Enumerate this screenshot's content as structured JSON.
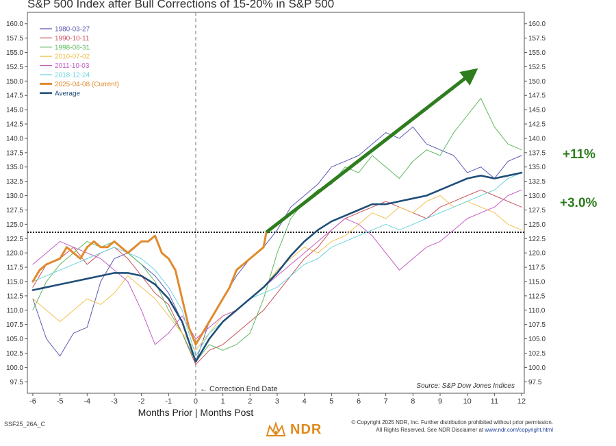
{
  "title": "S&P 500 Index after Bull Corrections of 15-20% in S&P 500",
  "callouts": {
    "upper": "+11%",
    "lower": "+3.0%"
  },
  "footer": {
    "code": "SSF25_26A_C",
    "copyright_line1": "© Copyright 2025 NDR, Inc. Further distribution prohibited without prior permission.",
    "copyright_line2": "All Rights Reserved. See NDR Disclaimer at",
    "copyright_link": "www.ndr.com/copyright.html",
    "logo_text": "NDR"
  },
  "colors": {
    "arrow": "#2e7d1e",
    "callout": "#2e7d1e",
    "logo": "#e08a1e"
  },
  "chart_data": {
    "type": "line",
    "xlabel": "Months Prior | Months Post",
    "source": "Source:  S&P Dow Jones Indices",
    "annotation": "Correction End Date",
    "xlim": [
      -6.2,
      12.1
    ],
    "ylim": [
      95.5,
      162
    ],
    "x_ticks": [
      -6,
      -5,
      -4,
      -3,
      -2,
      -1,
      0,
      1,
      2,
      3,
      4,
      5,
      6,
      7,
      8,
      9,
      10,
      11,
      12
    ],
    "y_ticks": [
      "160.0",
      "157.5",
      "155.0",
      "152.5",
      "150.0",
      "147.5",
      "145.0",
      "142.5",
      "140.0",
      "137.5",
      "135.0",
      "132.5",
      "130.0",
      "127.5",
      "125.0",
      "122.5",
      "120.0",
      "117.5",
      "115.0",
      "112.5",
      "110.0",
      "107.5",
      "105.0",
      "102.5",
      "100.0",
      "97.5"
    ],
    "reference_line": 123.6,
    "legend_position": "top-left",
    "series": [
      {
        "name": "1980-03-27",
        "color": "#5a5ab4",
        "width": 1,
        "points": [
          [
            -6,
            112
          ],
          [
            -5.5,
            105
          ],
          [
            -5,
            102
          ],
          [
            -4.5,
            106
          ],
          [
            -4,
            107
          ],
          [
            -3.5,
            115
          ],
          [
            -3,
            119
          ],
          [
            -2.5,
            120
          ],
          [
            -2,
            118
          ],
          [
            -1.5,
            116
          ],
          [
            -1,
            113
          ],
          [
            -0.5,
            108
          ],
          [
            0,
            101
          ],
          [
            0.5,
            108
          ],
          [
            1,
            112
          ],
          [
            1.5,
            116
          ],
          [
            2,
            119
          ],
          [
            2.5,
            121
          ],
          [
            3,
            124
          ],
          [
            3.5,
            128
          ],
          [
            4,
            130
          ],
          [
            4.5,
            132
          ],
          [
            5,
            135
          ],
          [
            5.5,
            136
          ],
          [
            6,
            137
          ],
          [
            6.5,
            139
          ],
          [
            7,
            141
          ],
          [
            7.5,
            140
          ],
          [
            8,
            142
          ],
          [
            8.5,
            139
          ],
          [
            9,
            138
          ],
          [
            9.5,
            137
          ],
          [
            10,
            134
          ],
          [
            10.5,
            135
          ],
          [
            11,
            133
          ],
          [
            11.5,
            136
          ],
          [
            12,
            137
          ]
        ]
      },
      {
        "name": "1990-10-11",
        "color": "#c8505a",
        "width": 1,
        "points": [
          [
            -6,
            114
          ],
          [
            -5.5,
            118
          ],
          [
            -5,
            119
          ],
          [
            -4.5,
            121
          ],
          [
            -4,
            118
          ],
          [
            -3.5,
            120
          ],
          [
            -3,
            121
          ],
          [
            -2.5,
            119
          ],
          [
            -2,
            116
          ],
          [
            -1.5,
            113
          ],
          [
            -1,
            111
          ],
          [
            -0.5,
            106
          ],
          [
            0,
            100.5
          ],
          [
            0.5,
            103
          ],
          [
            1,
            104
          ],
          [
            1.5,
            106
          ],
          [
            2,
            108
          ],
          [
            2.5,
            110
          ],
          [
            3,
            113
          ],
          [
            3.5,
            116
          ],
          [
            4,
            119
          ],
          [
            4.5,
            121
          ],
          [
            5,
            124
          ],
          [
            5.5,
            126
          ],
          [
            6,
            127
          ],
          [
            6.5,
            128
          ],
          [
            7,
            129
          ],
          [
            7.5,
            128
          ],
          [
            8,
            127
          ],
          [
            8.5,
            126
          ],
          [
            9,
            128
          ],
          [
            9.5,
            129
          ],
          [
            10,
            130
          ],
          [
            10.5,
            131
          ],
          [
            11,
            130
          ],
          [
            11.5,
            129
          ],
          [
            12,
            128
          ]
        ]
      },
      {
        "name": "1998-08-31",
        "color": "#5cb85c",
        "width": 1,
        "points": [
          [
            -6,
            110
          ],
          [
            -5.5,
            115
          ],
          [
            -5,
            118
          ],
          [
            -4.5,
            120
          ],
          [
            -4,
            122
          ],
          [
            -3.5,
            121
          ],
          [
            -3,
            122
          ],
          [
            -2.5,
            120
          ],
          [
            -2,
            118
          ],
          [
            -1.5,
            115
          ],
          [
            -1,
            110
          ],
          [
            -0.5,
            106
          ],
          [
            0,
            101
          ],
          [
            0.5,
            104
          ],
          [
            1,
            103
          ],
          [
            1.5,
            104
          ],
          [
            2,
            106
          ],
          [
            2.5,
            112
          ],
          [
            3,
            120
          ],
          [
            3.5,
            126
          ],
          [
            4,
            129
          ],
          [
            4.5,
            131
          ],
          [
            5,
            132
          ],
          [
            5.5,
            135
          ],
          [
            6,
            134
          ],
          [
            6.5,
            137
          ],
          [
            7,
            135
          ],
          [
            7.5,
            133
          ],
          [
            8,
            136
          ],
          [
            8.5,
            138
          ],
          [
            9,
            137
          ],
          [
            9.5,
            141
          ],
          [
            10,
            144
          ],
          [
            10.5,
            147
          ],
          [
            11,
            142
          ],
          [
            11.5,
            139
          ],
          [
            12,
            138
          ]
        ]
      },
      {
        "name": "2010-07-02",
        "color": "#f2c14e",
        "width": 1,
        "points": [
          [
            -6,
            112
          ],
          [
            -5.5,
            110
          ],
          [
            -5,
            108
          ],
          [
            -4.5,
            110
          ],
          [
            -4,
            112
          ],
          [
            -3.5,
            111
          ],
          [
            -3,
            113
          ],
          [
            -2.5,
            116
          ],
          [
            -2,
            114
          ],
          [
            -1.5,
            112
          ],
          [
            -1,
            109
          ],
          [
            -0.5,
            106
          ],
          [
            0,
            103
          ],
          [
            0.5,
            106
          ],
          [
            1,
            109
          ],
          [
            1.5,
            110
          ],
          [
            2,
            112
          ],
          [
            2.5,
            114
          ],
          [
            3,
            117
          ],
          [
            3.5,
            119
          ],
          [
            4,
            121
          ],
          [
            4.5,
            120
          ],
          [
            5,
            122
          ],
          [
            5.5,
            123
          ],
          [
            6,
            125
          ],
          [
            6.5,
            127
          ],
          [
            7,
            126
          ],
          [
            7.5,
            128
          ],
          [
            8,
            127
          ],
          [
            8.5,
            129
          ],
          [
            9,
            130
          ],
          [
            9.5,
            128
          ],
          [
            10,
            129
          ],
          [
            10.5,
            128
          ],
          [
            11,
            127
          ],
          [
            11.5,
            125
          ],
          [
            12,
            124
          ]
        ]
      },
      {
        "name": "2011-10-03",
        "color": "#c45cc4",
        "width": 1,
        "points": [
          [
            -6,
            118
          ],
          [
            -5.5,
            120
          ],
          [
            -5,
            122
          ],
          [
            -4.5,
            121
          ],
          [
            -4,
            120
          ],
          [
            -3.5,
            119
          ],
          [
            -3,
            117
          ],
          [
            -2.5,
            115
          ],
          [
            -2,
            110
          ],
          [
            -1.5,
            104
          ],
          [
            -1,
            106
          ],
          [
            -0.5,
            109
          ],
          [
            0,
            105
          ],
          [
            0.5,
            107
          ],
          [
            1,
            109
          ],
          [
            1.5,
            110
          ],
          [
            2,
            112
          ],
          [
            2.5,
            114
          ],
          [
            3,
            116
          ],
          [
            3.5,
            118
          ],
          [
            4,
            120
          ],
          [
            4.5,
            122
          ],
          [
            5,
            124
          ],
          [
            5.5,
            126
          ],
          [
            6,
            125
          ],
          [
            6.5,
            123
          ],
          [
            7,
            120
          ],
          [
            7.5,
            117
          ],
          [
            8,
            119
          ],
          [
            8.5,
            121
          ],
          [
            9,
            122
          ],
          [
            9.5,
            124
          ],
          [
            10,
            126
          ],
          [
            10.5,
            127
          ],
          [
            11,
            128
          ],
          [
            11.5,
            130
          ],
          [
            12,
            131
          ]
        ]
      },
      {
        "name": "2018-12-24",
        "color": "#6ad4de",
        "width": 1,
        "points": [
          [
            -6,
            115
          ],
          [
            -5.5,
            116
          ],
          [
            -5,
            117
          ],
          [
            -4.5,
            118
          ],
          [
            -4,
            119
          ],
          [
            -3.5,
            120
          ],
          [
            -3,
            121
          ],
          [
            -2.5,
            120
          ],
          [
            -2,
            119
          ],
          [
            -1.5,
            117
          ],
          [
            -1,
            114
          ],
          [
            -0.5,
            110
          ],
          [
            0,
            102
          ],
          [
            0.5,
            106
          ],
          [
            1,
            108
          ],
          [
            1.5,
            110
          ],
          [
            2,
            112
          ],
          [
            2.5,
            113
          ],
          [
            3,
            114
          ],
          [
            3.5,
            116
          ],
          [
            4,
            118
          ],
          [
            4.5,
            119
          ],
          [
            5,
            121
          ],
          [
            5.5,
            122
          ],
          [
            6,
            123
          ],
          [
            6.5,
            124
          ],
          [
            7,
            125
          ],
          [
            7.5,
            124
          ],
          [
            8,
            125
          ],
          [
            8.5,
            126
          ],
          [
            9,
            127
          ],
          [
            9.5,
            128
          ],
          [
            10,
            129
          ],
          [
            10.5,
            130
          ],
          [
            11,
            131
          ],
          [
            11.5,
            133
          ],
          [
            12,
            134
          ]
        ]
      },
      {
        "name": "2025-04-08 (Current)",
        "color": "#e08a2c",
        "width": 3,
        "points": [
          [
            -6,
            115
          ],
          [
            -5.75,
            117
          ],
          [
            -5.5,
            118
          ],
          [
            -5,
            119
          ],
          [
            -4.75,
            121
          ],
          [
            -4.5,
            120
          ],
          [
            -4.25,
            119
          ],
          [
            -4,
            121
          ],
          [
            -3.75,
            122
          ],
          [
            -3.5,
            121
          ],
          [
            -3.25,
            121
          ],
          [
            -3,
            122
          ],
          [
            -2.75,
            121
          ],
          [
            -2.5,
            120
          ],
          [
            -2.25,
            121
          ],
          [
            -2,
            122
          ],
          [
            -1.75,
            122
          ],
          [
            -1.5,
            123
          ],
          [
            -1.25,
            120
          ],
          [
            -1,
            119
          ],
          [
            -0.75,
            117
          ],
          [
            -0.5,
            112
          ],
          [
            -0.25,
            107
          ],
          [
            0,
            104
          ],
          [
            0.25,
            106
          ],
          [
            0.5,
            108
          ],
          [
            0.75,
            110
          ],
          [
            1,
            112
          ],
          [
            1.25,
            114
          ],
          [
            1.5,
            117
          ],
          [
            1.75,
            118
          ],
          [
            2,
            119
          ],
          [
            2.25,
            120
          ],
          [
            2.5,
            121
          ],
          [
            2.6,
            123.6
          ]
        ]
      },
      {
        "name": "Average",
        "color": "#1f4e79",
        "width": 2.6,
        "points": [
          [
            -6,
            113.5
          ],
          [
            -5.5,
            114
          ],
          [
            -5,
            114.5
          ],
          [
            -4.5,
            115
          ],
          [
            -4,
            115.5
          ],
          [
            -3.5,
            116
          ],
          [
            -3,
            116.5
          ],
          [
            -2.5,
            116.5
          ],
          [
            -2,
            116
          ],
          [
            -1.5,
            114.5
          ],
          [
            -1,
            112
          ],
          [
            -0.5,
            108
          ],
          [
            0,
            101
          ],
          [
            0.5,
            105
          ],
          [
            1,
            108
          ],
          [
            1.5,
            110
          ],
          [
            2,
            112
          ],
          [
            2.5,
            114
          ],
          [
            3,
            116.5
          ],
          [
            3.5,
            119.5
          ],
          [
            4,
            122
          ],
          [
            4.5,
            124
          ],
          [
            5,
            125.5
          ],
          [
            5.5,
            126.5
          ],
          [
            6,
            127.5
          ],
          [
            6.5,
            128.5
          ],
          [
            7,
            128.5
          ],
          [
            7.5,
            129
          ],
          [
            8,
            129.5
          ],
          [
            8.5,
            130
          ],
          [
            9,
            131
          ],
          [
            9.5,
            132
          ],
          [
            10,
            133
          ],
          [
            10.5,
            133.5
          ],
          [
            11,
            133
          ],
          [
            11.5,
            133.5
          ],
          [
            12,
            134
          ]
        ]
      }
    ],
    "arrow": {
      "from": [
        2.6,
        123.6
      ],
      "to": [
        10.2,
        151.5
      ]
    }
  }
}
